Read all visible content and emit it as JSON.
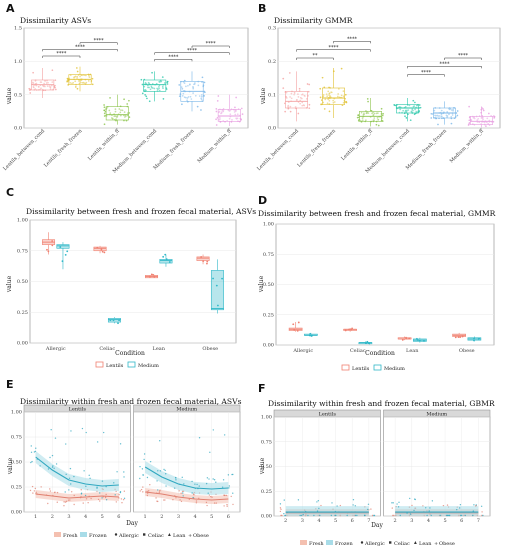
{
  "panels": {
    "A": {
      "letter": "A",
      "title": "Dissimilarity ASVs",
      "ylabel": "value",
      "ylim": [
        0,
        1.5
      ],
      "yticks": [
        "0.0",
        "0.5",
        "1.0",
        "1.5"
      ],
      "categories": [
        "Lentils_between_cond",
        "Lentils_fresh_frozen",
        "Lentils_within_ff",
        "Medium_between_cond",
        "Medium_fresh_frozen",
        "Medium_within_ff"
      ],
      "colors": [
        "#f4a0a0",
        "#e0c030",
        "#8bc34a",
        "#26c6a8",
        "#79b6e8",
        "#e79ee0"
      ],
      "boxes": [
        [
          0.45,
          0.57,
          0.65,
          0.72,
          0.9
        ],
        [
          0.55,
          0.65,
          0.73,
          0.8,
          0.92
        ],
        [
          0.05,
          0.12,
          0.2,
          0.32,
          0.5
        ],
        [
          0.4,
          0.55,
          0.65,
          0.72,
          0.85
        ],
        [
          0.25,
          0.4,
          0.55,
          0.7,
          0.85
        ],
        [
          0.03,
          0.1,
          0.18,
          0.28,
          0.5
        ]
      ],
      "brackets": [
        [
          0,
          1,
          1.08,
          "****"
        ],
        [
          0,
          2,
          1.18,
          "****"
        ],
        [
          1,
          2,
          1.28,
          "****"
        ],
        [
          3,
          4,
          1.03,
          "****"
        ],
        [
          3,
          5,
          1.13,
          "****"
        ],
        [
          4,
          5,
          1.23,
          "****"
        ]
      ]
    },
    "B": {
      "letter": "B",
      "title": "Dissimilarity GMMR",
      "ylabel": "value",
      "ylim": [
        0,
        0.3
      ],
      "yticks": [
        "0.0",
        "0.1",
        "0.2",
        "0.3"
      ],
      "categories": [
        "Lentils_between_cond",
        "Lentils_fresh_frozen",
        "Lentils_within_ff",
        "Medium_between_cond",
        "Medium_fresh_frozen",
        "Medium_within_ff"
      ],
      "colors": [
        "#f4a0a0",
        "#e0c030",
        "#8bc34a",
        "#26c6a8",
        "#79b6e8",
        "#e79ee0"
      ],
      "boxes": [
        [
          0.02,
          0.06,
          0.08,
          0.11,
          0.17
        ],
        [
          0.03,
          0.07,
          0.09,
          0.12,
          0.18
        ],
        [
          0.005,
          0.02,
          0.035,
          0.05,
          0.09
        ],
        [
          0.02,
          0.045,
          0.06,
          0.07,
          0.09
        ],
        [
          0.01,
          0.03,
          0.045,
          0.06,
          0.08
        ],
        [
          0.002,
          0.01,
          0.02,
          0.035,
          0.065
        ]
      ],
      "brackets": [
        [
          0,
          1,
          0.21,
          "**"
        ],
        [
          0,
          2,
          0.235,
          "****"
        ],
        [
          1,
          2,
          0.26,
          "****"
        ],
        [
          3,
          4,
          0.16,
          "****"
        ],
        [
          3,
          5,
          0.185,
          "****"
        ],
        [
          4,
          5,
          0.21,
          "****"
        ]
      ]
    },
    "C": {
      "letter": "C",
      "title": "Dissimilarity between fresh and frozen fecal material, ASVs",
      "xlabel": "Condition",
      "ylabel": "value",
      "ylim": [
        0,
        1.0
      ],
      "yticks": [
        "0.00",
        "0.25",
        "0.50",
        "0.75",
        "1.00"
      ],
      "categories": [
        "Allergic",
        "Celiac",
        "Lean",
        "Obese"
      ],
      "lentils": [
        [
          0.72,
          0.8,
          0.82,
          0.84,
          0.9
        ],
        [
          0.73,
          0.75,
          0.77,
          0.78,
          0.79
        ],
        [
          0.53,
          0.53,
          0.54,
          0.55,
          0.56
        ],
        [
          0.64,
          0.67,
          0.69,
          0.7,
          0.72
        ]
      ],
      "medium": [
        [
          0.6,
          0.77,
          0.79,
          0.8,
          0.82
        ],
        [
          0.16,
          0.17,
          0.19,
          0.2,
          0.21
        ],
        [
          0.62,
          0.65,
          0.67,
          0.68,
          0.72
        ],
        [
          0.24,
          0.27,
          0.28,
          0.59,
          0.68
        ]
      ],
      "legend": [
        "Lentils",
        "Medium"
      ]
    },
    "D": {
      "letter": "D",
      "title": "Dissimilarity between fresh and frozen fecal material, GMMR",
      "xlabel": "Condition",
      "ylabel": "value",
      "ylim": [
        0,
        1.0
      ],
      "yticks": [
        "0.00",
        "0.25",
        "0.50",
        "0.75",
        "1.00"
      ],
      "categories": [
        "Allergic",
        "Celiac",
        "Lean",
        "Obese"
      ],
      "lentils": [
        [
          0.11,
          0.12,
          0.13,
          0.14,
          0.19
        ],
        [
          0.11,
          0.12,
          0.13,
          0.13,
          0.14
        ],
        [
          0.04,
          0.05,
          0.05,
          0.06,
          0.07
        ],
        [
          0.06,
          0.07,
          0.08,
          0.09,
          0.1
        ]
      ],
      "medium": [
        [
          0.07,
          0.08,
          0.08,
          0.09,
          0.1
        ],
        [
          0.01,
          0.01,
          0.02,
          0.02,
          0.03
        ],
        [
          0.02,
          0.03,
          0.04,
          0.05,
          0.06
        ],
        [
          0.03,
          0.04,
          0.05,
          0.06,
          0.07
        ]
      ],
      "legend": [
        "Lentils",
        "Medium"
      ]
    },
    "E": {
      "letter": "E",
      "title": "Dissimilarity within fresh and frozen fecal material, ASVs",
      "xlabel": "Day",
      "ylabel": "value",
      "ylim": [
        0,
        1.0
      ],
      "yticks": [
        "0.00",
        "0.25",
        "0.50",
        "0.75",
        "1.00"
      ],
      "strips": [
        "Lentils",
        "Medium"
      ],
      "days": [
        "1",
        "2",
        "3",
        "4",
        "5",
        "6"
      ],
      "facets": [
        {
          "fresh": [
            0.18,
            0.16,
            0.14,
            0.15,
            0.16,
            0.15
          ],
          "frozen": [
            0.55,
            0.42,
            0.32,
            0.28,
            0.26,
            0.27
          ]
        },
        {
          "fresh": [
            0.2,
            0.18,
            0.15,
            0.13,
            0.12,
            0.13
          ],
          "frozen": [
            0.45,
            0.35,
            0.28,
            0.24,
            0.23,
            0.24
          ]
        }
      ],
      "legend": [
        "Fresh",
        "Frozen",
        "Allergic",
        "Celiac",
        "Lean",
        "Obese"
      ]
    },
    "F": {
      "letter": "F",
      "title": "Dissimilarity within fresh and frozen fecal material, GBMR",
      "xlabel": "Day",
      "ylabel": "value",
      "ylim": [
        0,
        1.0
      ],
      "yticks": [
        "0.00",
        "0.25",
        "0.50",
        "0.75",
        "1.00"
      ],
      "strips": [
        "Lentils",
        "Medium"
      ],
      "days": [
        "2",
        "3",
        "4",
        "5",
        "6",
        "7",
        "2",
        "3",
        "4",
        "5",
        "6",
        "7"
      ],
      "facets": [
        {
          "fresh": [
            0.03,
            0.03,
            0.03,
            0.03,
            0.03,
            0.03
          ],
          "frozen": [
            0.04,
            0.04,
            0.04,
            0.04,
            0.04,
            0.04
          ]
        },
        {
          "fresh": [
            0.03,
            0.03,
            0.03,
            0.03,
            0.03,
            0.03
          ],
          "frozen": [
            0.04,
            0.04,
            0.04,
            0.04,
            0.04,
            0.04
          ]
        }
      ],
      "legend": [
        "Fresh",
        "Frozen",
        "Allergic",
        "Celiac",
        "Lean",
        "Obese"
      ]
    }
  },
  "colors": {
    "lentils": "#f08070",
    "medium": "#30b8c8",
    "fresh": "#e08070",
    "frozen": "#30a8c0",
    "panel_bg": "#ffffff",
    "grid": "#e8e8e8",
    "strip_bg": "#d9d9d9"
  },
  "chart_data": [
    {
      "type": "box",
      "title": "Dissimilarity ASVs",
      "ylabel": "value",
      "ylim": [
        0,
        1.5
      ],
      "categories": [
        "Lentils_between_cond",
        "Lentils_fresh_frozen",
        "Lentils_within_ff",
        "Medium_between_cond",
        "Medium_fresh_frozen",
        "Medium_within_ff"
      ],
      "medians": [
        0.65,
        0.73,
        0.2,
        0.65,
        0.55,
        0.18
      ]
    },
    {
      "type": "box",
      "title": "Dissimilarity GMMR",
      "ylabel": "value",
      "ylim": [
        0,
        0.3
      ],
      "categories": [
        "Lentils_between_cond",
        "Lentils_fresh_frozen",
        "Lentils_within_ff",
        "Medium_between_cond",
        "Medium_fresh_frozen",
        "Medium_within_ff"
      ],
      "medians": [
        0.08,
        0.09,
        0.035,
        0.06,
        0.045,
        0.02
      ]
    },
    {
      "type": "box",
      "title": "Dissimilarity between fresh and frozen fecal material, ASVs",
      "xlabel": "Condition",
      "ylabel": "value",
      "ylim": [
        0,
        1.0
      ],
      "categories": [
        "Allergic",
        "Celiac",
        "Lean",
        "Obese"
      ],
      "series": [
        {
          "name": "Lentils",
          "medians": [
            0.82,
            0.77,
            0.54,
            0.69
          ]
        },
        {
          "name": "Medium",
          "medians": [
            0.79,
            0.19,
            0.67,
            0.28
          ]
        }
      ]
    },
    {
      "type": "box",
      "title": "Dissimilarity between fresh and frozen fecal material, GMMR",
      "xlabel": "Condition",
      "ylabel": "value",
      "ylim": [
        0,
        1.0
      ],
      "categories": [
        "Allergic",
        "Celiac",
        "Lean",
        "Obese"
      ],
      "series": [
        {
          "name": "Lentils",
          "medians": [
            0.13,
            0.13,
            0.05,
            0.08
          ]
        },
        {
          "name": "Medium",
          "medians": [
            0.08,
            0.02,
            0.04,
            0.05
          ]
        }
      ]
    },
    {
      "type": "line",
      "title": "Dissimilarity within fresh and frozen fecal material, ASVs",
      "xlabel": "Day",
      "ylabel": "value",
      "ylim": [
        0,
        1.0
      ],
      "facets": [
        "Lentils",
        "Medium"
      ],
      "x": [
        1,
        2,
        3,
        4,
        5,
        6
      ],
      "series": [
        {
          "name": "Fresh",
          "values": [
            0.18,
            0.16,
            0.14,
            0.15,
            0.16,
            0.15
          ]
        },
        {
          "name": "Frozen",
          "values": [
            0.55,
            0.42,
            0.32,
            0.28,
            0.26,
            0.27
          ]
        }
      ]
    },
    {
      "type": "line",
      "title": "Dissimilarity within fresh and frozen fecal material, GBMR",
      "xlabel": "Day",
      "ylabel": "value",
      "ylim": [
        0,
        1.0
      ],
      "facets": [
        "Lentils",
        "Medium"
      ],
      "x": [
        2,
        3,
        4,
        5,
        6,
        7
      ],
      "series": [
        {
          "name": "Fresh",
          "values": [
            0.03,
            0.03,
            0.03,
            0.03,
            0.03,
            0.03
          ]
        },
        {
          "name": "Frozen",
          "values": [
            0.04,
            0.04,
            0.04,
            0.04,
            0.04,
            0.04
          ]
        }
      ]
    }
  ]
}
